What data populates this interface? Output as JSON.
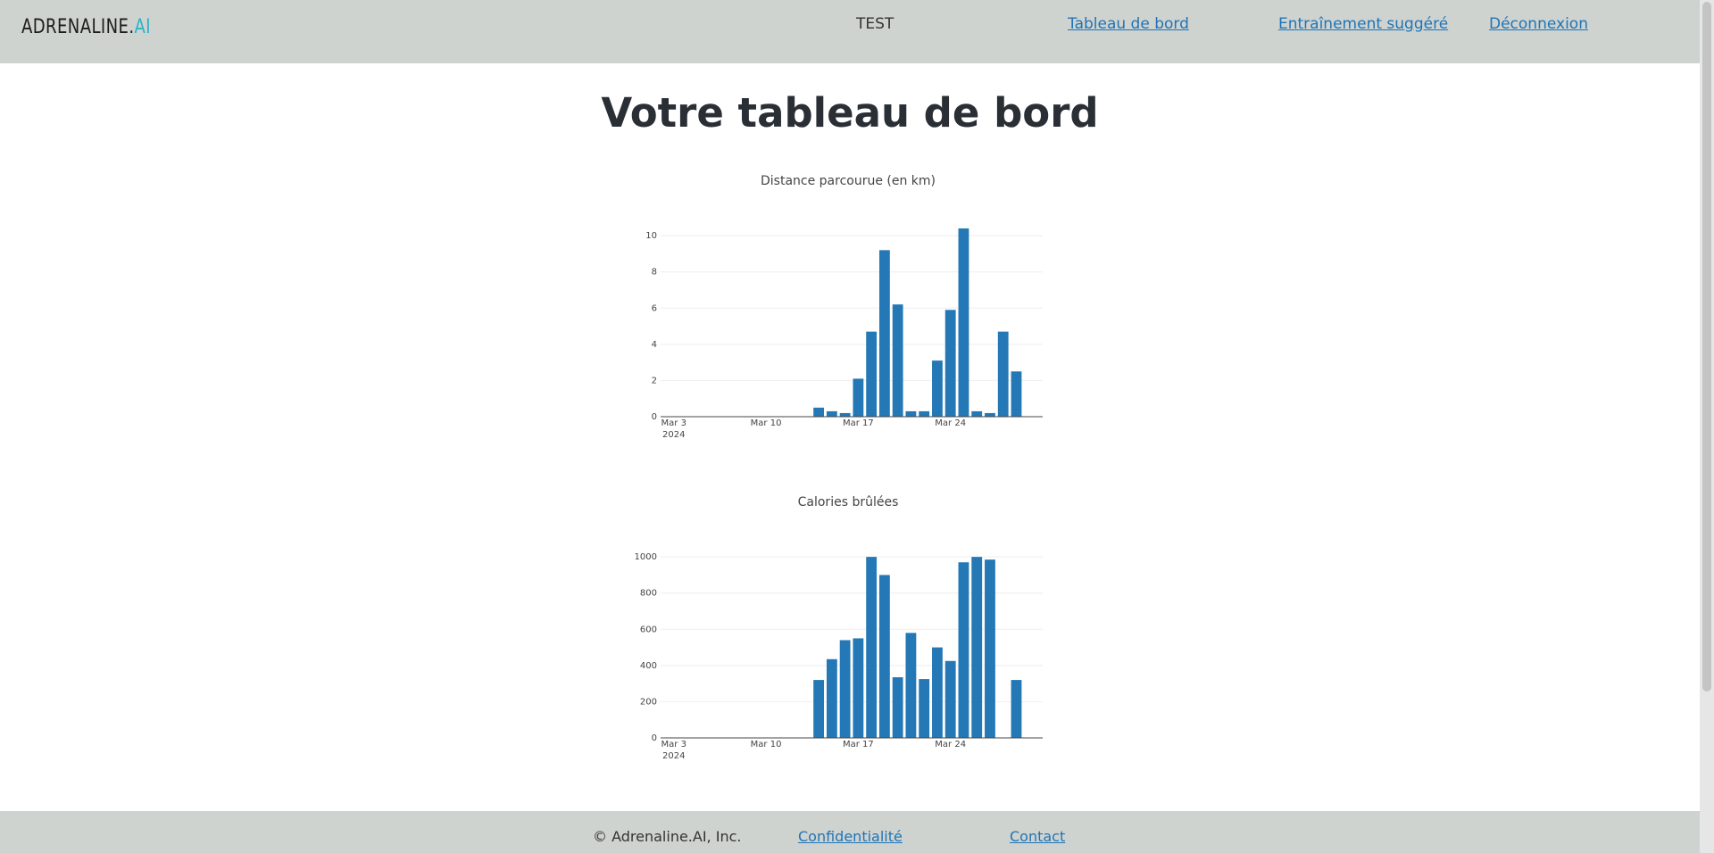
{
  "header": {
    "logo_main": "ADRENALINE.",
    "logo_accent": "AI",
    "user_name": "TEST",
    "nav": {
      "dashboard": "Tableau de bord",
      "training": "Entraînement suggéré",
      "logout": "Déconnexion"
    }
  },
  "main": {
    "title": "Votre tableau de bord"
  },
  "footer": {
    "copyright": "© Adrenaline.AI, Inc.",
    "privacy": "Confidentialité",
    "contact": "Contact"
  },
  "colors": {
    "bar": "#2378b5",
    "header_bg": "#cfd3d0",
    "link": "#1f74b5",
    "logo_accent": "#2bb3c9"
  },
  "chart_data": [
    {
      "type": "bar",
      "title": "Distance parcourue (en km)",
      "x_type": "date",
      "x": [
        "2024-03-14",
        "2024-03-15",
        "2024-03-16",
        "2024-03-17",
        "2024-03-18",
        "2024-03-19",
        "2024-03-20",
        "2024-03-21",
        "2024-03-22",
        "2024-03-23",
        "2024-03-24",
        "2024-03-25",
        "2024-03-26",
        "2024-03-27",
        "2024-03-28",
        "2024-03-29",
        "2024-03-30"
      ],
      "values": [
        0.5,
        0.3,
        0.2,
        2.1,
        4.7,
        9.2,
        6.2,
        0.3,
        0.3,
        3.1,
        5.9,
        10.4,
        0.3,
        0.2,
        4.7,
        2.5,
        0
      ],
      "xlim": [
        "2024-03-02",
        "2024-03-31"
      ],
      "ylim": [
        0,
        10.5
      ],
      "y_ticks": [
        0,
        2,
        4,
        6,
        8,
        10
      ],
      "x_tick_dates": [
        "2024-03-03",
        "2024-03-10",
        "2024-03-17",
        "2024-03-24"
      ],
      "x_tick_labels": [
        "Mar 3",
        "Mar 10",
        "Mar 17",
        "Mar 24"
      ],
      "x_year_label": "2024",
      "grid": true
    },
    {
      "type": "bar",
      "title": "Calories brûlées",
      "x_type": "date",
      "x": [
        "2024-03-14",
        "2024-03-15",
        "2024-03-16",
        "2024-03-17",
        "2024-03-18",
        "2024-03-19",
        "2024-03-20",
        "2024-03-21",
        "2024-03-22",
        "2024-03-23",
        "2024-03-24",
        "2024-03-25",
        "2024-03-26",
        "2024-03-27",
        "2024-03-28",
        "2024-03-29",
        "2024-03-30"
      ],
      "values": [
        320,
        435,
        540,
        550,
        1000,
        900,
        335,
        580,
        325,
        500,
        425,
        970,
        1000,
        985,
        0,
        320,
        0
      ],
      "xlim": [
        "2024-03-02",
        "2024-03-31"
      ],
      "ylim": [
        0,
        1050
      ],
      "y_ticks": [
        0,
        200,
        400,
        600,
        800,
        1000
      ],
      "x_tick_dates": [
        "2024-03-03",
        "2024-03-10",
        "2024-03-17",
        "2024-03-24"
      ],
      "x_tick_labels": [
        "Mar 3",
        "Mar 10",
        "Mar 17",
        "Mar 24"
      ],
      "x_year_label": "2024",
      "grid": true
    }
  ]
}
